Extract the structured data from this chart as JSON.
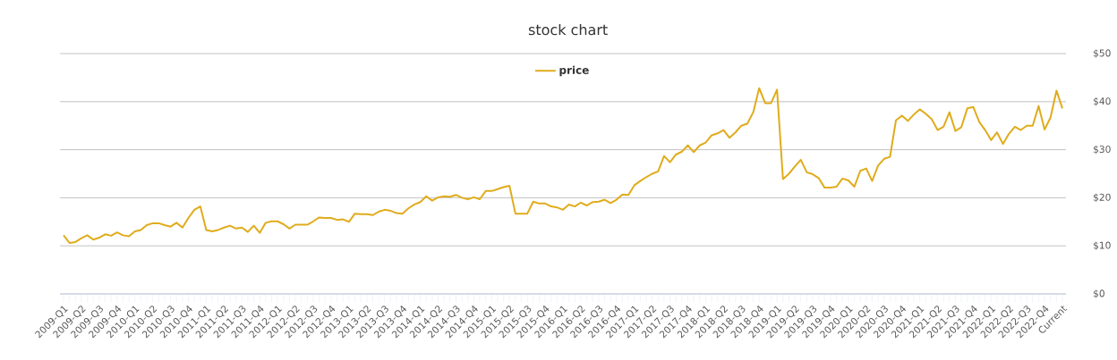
{
  "chart_data": {
    "type": "line",
    "title": "stock chart",
    "categories": [
      "2009-Q1",
      null,
      null,
      "2009-Q2",
      null,
      null,
      "2009-Q3",
      null,
      null,
      "2009-Q4",
      null,
      null,
      "2010-Q1",
      null,
      null,
      "2010-Q2",
      null,
      null,
      "2010-Q3",
      null,
      null,
      "2010-Q4",
      null,
      null,
      "2011-Q1",
      null,
      null,
      "2011-Q2",
      null,
      null,
      "2011-Q3",
      null,
      null,
      "2011-Q4",
      null,
      null,
      "2012-Q1",
      null,
      null,
      "2012-Q2",
      null,
      null,
      "2012-Q3",
      null,
      null,
      "2012-Q4",
      null,
      null,
      "2013-Q1",
      null,
      null,
      "2013-Q2",
      null,
      null,
      "2013-Q3",
      null,
      null,
      "2013-Q4",
      null,
      null,
      "2014-Q1",
      null,
      null,
      "2014-Q2",
      null,
      null,
      "2014-Q3",
      null,
      null,
      "2014-Q4",
      null,
      null,
      "2015-Q1",
      null,
      null,
      "2015-Q2",
      null,
      null,
      "2015-Q3",
      null,
      null,
      "2015-Q4",
      null,
      null,
      "2016-Q1",
      null,
      null,
      "2016-Q2",
      null,
      null,
      "2016-Q3",
      null,
      null,
      "2016-Q4",
      null,
      null,
      "2017-Q1",
      null,
      null,
      "2017-Q2",
      null,
      null,
      "2017-Q3",
      null,
      null,
      "2017-Q4",
      null,
      null,
      "2018-Q1",
      null,
      null,
      "2018-Q2",
      null,
      null,
      "2018-Q3",
      null,
      null,
      "2018-Q4",
      null,
      null,
      "2019-Q1",
      null,
      null,
      "2019-Q2",
      null,
      null,
      "2019-Q3",
      null,
      null,
      "2019-Q4",
      null,
      null,
      "2020-Q1",
      null,
      null,
      "2020-Q2",
      null,
      null,
      "2020-Q3",
      null,
      null,
      "2020-Q4",
      null,
      null,
      "2021-Q1",
      null,
      null,
      "2021-Q2",
      null,
      null,
      "2021-Q3",
      null,
      null,
      "2021-Q4",
      null,
      null,
      "2022-Q1",
      null,
      null,
      "2022-Q2",
      null,
      null,
      "2022-Q3",
      null,
      null,
      "2022-Q4",
      null,
      null,
      "Current"
    ],
    "series": [
      {
        "name": "price",
        "color": "#e0ac1c",
        "values": [
          12.2,
          10.6,
          10.8,
          11.6,
          12.2,
          11.3,
          11.7,
          12.4,
          12.1,
          12.8,
          12.2,
          12.0,
          13.0,
          13.3,
          14.3,
          14.7,
          14.7,
          14.3,
          14.0,
          14.8,
          13.8,
          15.8,
          17.5,
          18.2,
          13.3,
          13.0,
          13.3,
          13.8,
          14.2,
          13.6,
          13.8,
          12.9,
          14.2,
          12.7,
          14.8,
          15.1,
          15.1,
          14.5,
          13.6,
          14.4,
          14.4,
          14.4,
          15.1,
          15.9,
          15.8,
          15.8,
          15.4,
          15.5,
          15.0,
          16.7,
          16.6,
          16.6,
          16.4,
          17.1,
          17.5,
          17.3,
          16.8,
          16.7,
          17.8,
          18.6,
          19.1,
          20.3,
          19.4,
          20.1,
          20.3,
          20.2,
          20.6,
          20.0,
          19.7,
          20.1,
          19.7,
          21.4,
          21.4,
          21.8,
          22.2,
          22.5,
          16.7,
          16.7,
          16.7,
          19.2,
          18.8,
          18.8,
          18.2,
          18.0,
          17.5,
          18.6,
          18.2,
          19.0,
          18.4,
          19.1,
          19.2,
          19.6,
          18.9,
          19.6,
          20.7,
          20.6,
          22.6,
          23.5,
          24.3,
          25.0,
          25.5,
          28.7,
          27.4,
          29.0,
          29.6,
          30.9,
          29.5,
          30.9,
          31.5,
          33.0,
          33.4,
          34.1,
          32.5,
          33.6,
          35.0,
          35.4,
          37.8,
          42.8,
          39.7,
          39.7,
          42.5,
          23.9,
          25.0,
          26.5,
          27.9,
          25.3,
          24.9,
          24.1,
          22.1,
          22.1,
          22.3,
          24.0,
          23.6,
          22.3,
          25.6,
          26.1,
          23.5,
          26.7,
          28.1,
          28.5,
          36.1,
          37.1,
          36.0,
          37.3,
          38.4,
          37.5,
          36.4,
          34.1,
          34.8,
          37.8,
          33.9,
          34.7,
          38.6,
          38.9,
          35.8,
          34.1,
          32.0,
          33.6,
          31.2,
          33.3,
          34.8,
          34.1,
          35.0,
          35.0,
          39.1,
          34.2,
          36.7,
          42.3,
          38.6
        ]
      }
    ],
    "ylim": [
      0,
      50
    ],
    "yticks": [
      {
        "value": 0,
        "label": "$0"
      },
      {
        "value": 10,
        "label": "$10"
      },
      {
        "value": 20,
        "label": "$20"
      },
      {
        "value": 30,
        "label": "$30"
      },
      {
        "value": 40,
        "label": "$40"
      },
      {
        "value": 50,
        "label": "$50"
      }
    ],
    "grid": "y",
    "legend": "top"
  }
}
